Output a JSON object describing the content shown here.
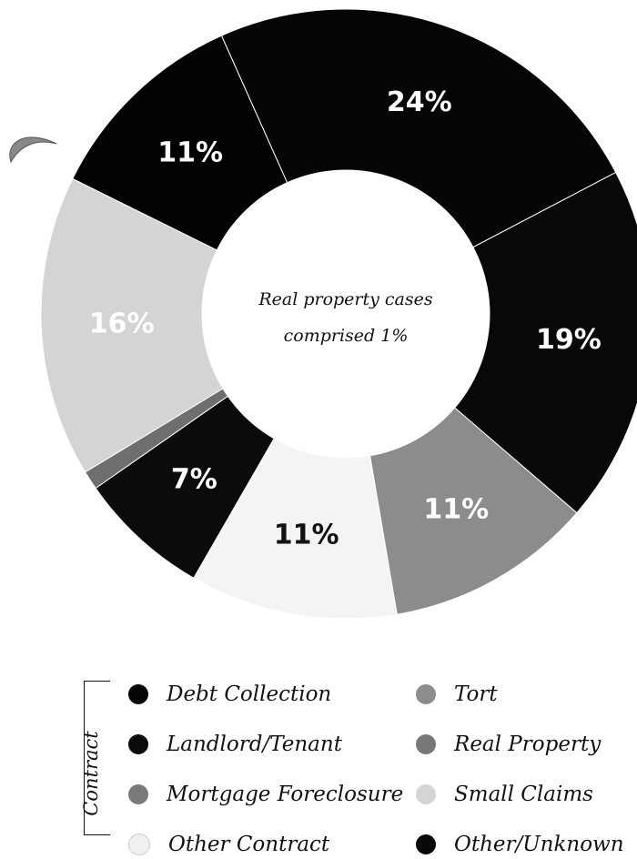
{
  "chart_data": {
    "type": "pie",
    "donut": true,
    "center_text": [
      "Real property cases",
      "comprised 1%"
    ],
    "slices": [
      {
        "category": "Debt Collection",
        "value": 24,
        "label": "24%",
        "color": "#050505",
        "label_color": "#ffffff"
      },
      {
        "category": "Other/Unknown",
        "value": 19,
        "label": "19%",
        "color": "#080808",
        "label_color": "#ffffff"
      },
      {
        "category": "Tort",
        "value": 11,
        "label": "11%",
        "color": "#8c8c8c",
        "label_color": "#ffffff"
      },
      {
        "category": "Other Contract",
        "value": 11,
        "label": "11%",
        "color": "#f4f4f4",
        "label_color": "#111111"
      },
      {
        "category": "Landlord/Tenant",
        "value": 7,
        "label": "7%",
        "color": "#0b0b0b",
        "label_color": "#ffffff"
      },
      {
        "category": "Mortgage Foreclosure",
        "value": 1,
        "label": "",
        "color": "#6e6e6e",
        "label_color": "#ffffff"
      },
      {
        "category": "Small Claims",
        "value": 16,
        "label": "16%",
        "color": "#d4d4d4",
        "label_color": "#ffffff"
      },
      {
        "category": "Landlord/Tenant",
        "value": 11,
        "label": "11%",
        "color": "#020202",
        "label_color": "#ffffff"
      }
    ]
  },
  "legend": {
    "group_label": "Contract",
    "items": [
      {
        "label": "Debt Collection",
        "color": "#050505"
      },
      {
        "label": "Landlord/Tenant",
        "color": "#0b0b0b"
      },
      {
        "label": "Mortgage Foreclosure",
        "color": "#7a7a7a"
      },
      {
        "label": "Other Contract",
        "color": "#f0f0f0"
      },
      {
        "label": "Tort",
        "color": "#8c8c8c"
      },
      {
        "label": "Real Property",
        "color": "#777777"
      },
      {
        "label": "Small Claims",
        "color": "#d4d4d4"
      },
      {
        "label": "Other/Unknown",
        "color": "#080808"
      }
    ]
  }
}
